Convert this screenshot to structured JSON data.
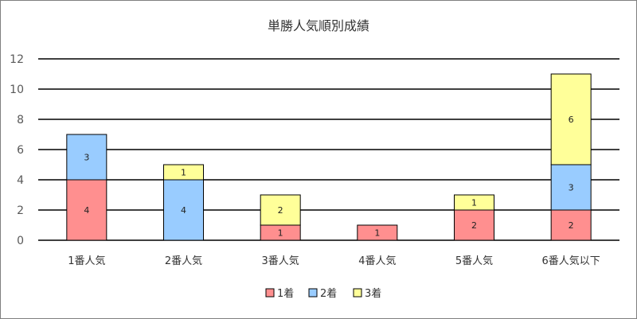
{
  "chart_data": {
    "type": "bar",
    "stacked": true,
    "title": "単勝人気順別成績",
    "categories": [
      "1番人気",
      "2番人気",
      "3番人気",
      "4番人気",
      "5番人気",
      "6番人気以下"
    ],
    "series": [
      {
        "name": "1着",
        "color": "#ff8f8f",
        "values": [
          4,
          0,
          1,
          1,
          2,
          2
        ]
      },
      {
        "name": "2着",
        "color": "#99ccff",
        "values": [
          3,
          4,
          0,
          0,
          0,
          3
        ]
      },
      {
        "name": "3着",
        "color": "#ffff99",
        "values": [
          0,
          1,
          2,
          0,
          1,
          6
        ]
      }
    ],
    "ylim": [
      0,
      12
    ],
    "yticks": [
      0,
      2,
      4,
      6,
      8,
      10,
      12
    ],
    "grid": true,
    "legend": "bottom"
  }
}
